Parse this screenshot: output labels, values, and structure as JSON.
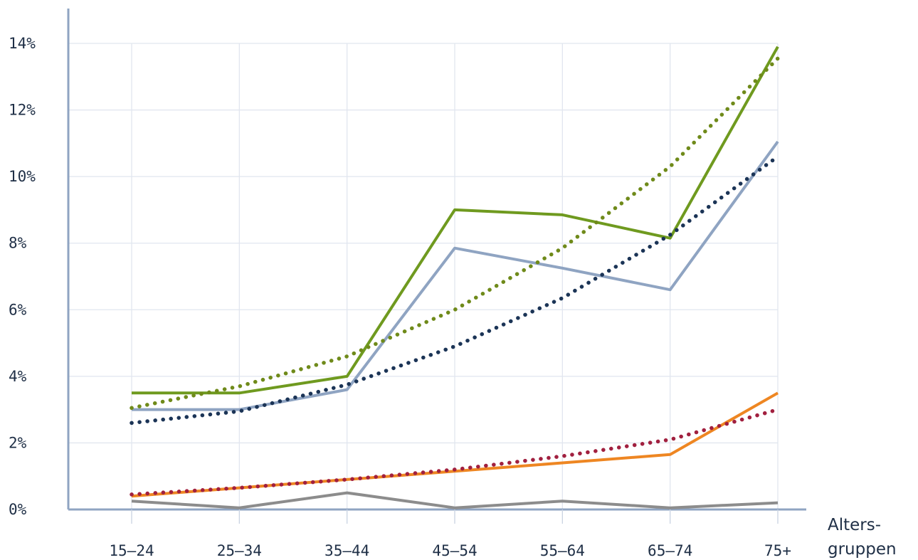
{
  "chart_data": {
    "type": "line",
    "categories": [
      "15–24",
      "25–34",
      "35–44",
      "45–54",
      "55–64",
      "65–74",
      "75+"
    ],
    "xlabel_lines": [
      "Alters-",
      "gruppen"
    ],
    "ylim": [
      0,
      14
    ],
    "yticks": [
      0,
      2,
      4,
      6,
      8,
      10,
      12,
      14
    ],
    "ytick_labels": [
      "0%",
      "2%",
      "4%",
      "6%",
      "8%",
      "10%",
      "12%",
      "14%"
    ],
    "grid": true,
    "series": [
      {
        "style": "solid",
        "color": "#6f9a1f",
        "values": [
          3.5,
          3.5,
          4.0,
          9.0,
          8.85,
          8.15,
          13.9
        ]
      },
      {
        "style": "solid",
        "color": "#8fa4c2",
        "values": [
          3.0,
          3.0,
          3.6,
          7.85,
          7.25,
          6.6,
          11.05
        ]
      },
      {
        "style": "solid",
        "color": "#ee8622",
        "values": [
          0.4,
          0.65,
          0.9,
          1.15,
          1.4,
          1.65,
          3.5
        ]
      },
      {
        "style": "solid",
        "color": "#8c8c8c",
        "values": [
          0.25,
          0.05,
          0.5,
          0.05,
          0.25,
          0.05,
          0.2
        ]
      },
      {
        "style": "dotted",
        "color": "#6f8a1a",
        "values": [
          3.05,
          3.7,
          4.6,
          6.0,
          7.85,
          10.3,
          13.55
        ]
      },
      {
        "style": "dotted",
        "color": "#1b3456",
        "values": [
          2.6,
          2.95,
          3.75,
          4.9,
          6.35,
          8.25,
          10.6
        ]
      },
      {
        "style": "dotted",
        "color": "#a1203f",
        "values": [
          0.45,
          0.65,
          0.9,
          1.2,
          1.6,
          2.1,
          3.0
        ]
      }
    ]
  }
}
